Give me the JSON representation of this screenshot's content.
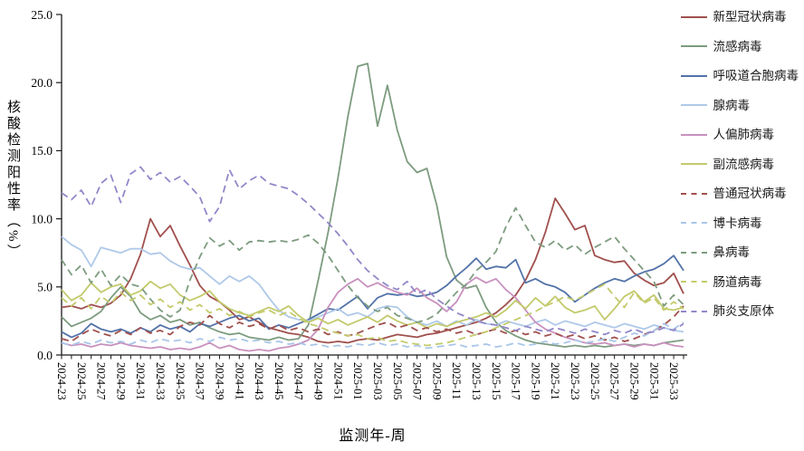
{
  "axes": {
    "x_title": "监测年-周",
    "y_title": "核酸检测阳性率（%）",
    "axis_color": "#1a1a1a"
  },
  "chart_data": {
    "type": "line",
    "title": "",
    "xlabel": "监测年-周",
    "ylabel": "核酸检测阳性率（%）",
    "ylim": [
      0,
      25
    ],
    "yticks": [
      "0.0",
      "5.0",
      "10.0",
      "15.0",
      "20.0",
      "25.0"
    ],
    "x_label_every": 2,
    "grid": false,
    "legend_position": "right",
    "categories": [
      "2024-23",
      "2024-24",
      "2024-25",
      "2024-26",
      "2024-27",
      "2024-28",
      "2024-29",
      "2024-30",
      "2024-31",
      "2024-32",
      "2024-33",
      "2024-34",
      "2024-35",
      "2024-36",
      "2024-37",
      "2024-38",
      "2024-39",
      "2024-40",
      "2024-41",
      "2024-42",
      "2024-43",
      "2024-44",
      "2024-45",
      "2024-46",
      "2024-47",
      "2024-48",
      "2024-49",
      "2024-50",
      "2024-51",
      "2024-52",
      "2025-01",
      "2025-02",
      "2025-03",
      "2025-04",
      "2025-05",
      "2025-06",
      "2025-07",
      "2025-08",
      "2025-09",
      "2025-10",
      "2025-11",
      "2025-12",
      "2025-13",
      "2025-14",
      "2025-15",
      "2025-16",
      "2025-17",
      "2025-18",
      "2025-19",
      "2025-20",
      "2025-21",
      "2025-22",
      "2025-23",
      "2025-24",
      "2025-25",
      "2025-26",
      "2025-27",
      "2025-28",
      "2025-29",
      "2025-30",
      "2025-31",
      "2025-32",
      "2025-33",
      "2025-34"
    ],
    "series": [
      {
        "id": "sars-cov-2",
        "name": "新型冠状病毒",
        "color": "#A0504E",
        "dash": false,
        "values": [
          3.5,
          3.6,
          3.4,
          3.7,
          3.5,
          3.8,
          4.4,
          5.6,
          7.4,
          10.0,
          8.7,
          9.5,
          8.0,
          6.6,
          5.1,
          4.3,
          3.9,
          3.3,
          2.6,
          2.8,
          2.4,
          2.0,
          1.8,
          1.6,
          1.5,
          1.3,
          1.0,
          0.9,
          1.0,
          0.9,
          1.1,
          1.2,
          1.1,
          1.3,
          1.5,
          1.4,
          1.3,
          1.5,
          1.6,
          1.8,
          2.0,
          2.2,
          2.4,
          2.7,
          3.1,
          3.7,
          4.4,
          5.5,
          7.0,
          9.0,
          11.5,
          10.4,
          9.2,
          9.5,
          7.3,
          7.0,
          6.8,
          6.9,
          6.0,
          5.5,
          5.1,
          5.3,
          6.0,
          4.5
        ]
      },
      {
        "id": "influenza",
        "name": "流感病毒",
        "color": "#7D9C7F",
        "dash": false,
        "values": [
          2.8,
          2.1,
          2.4,
          2.7,
          3.2,
          4.2,
          5.0,
          4.3,
          3.1,
          2.6,
          2.9,
          2.4,
          2.6,
          2.2,
          2.4,
          2.0,
          1.7,
          1.5,
          1.6,
          1.3,
          1.2,
          1.1,
          1.3,
          1.1,
          1.2,
          2.2,
          5.5,
          9.0,
          13.0,
          17.5,
          21.2,
          21.4,
          16.8,
          19.8,
          16.5,
          14.2,
          13.4,
          13.7,
          11.0,
          7.2,
          5.5,
          4.9,
          5.1,
          3.5,
          2.4,
          1.8,
          1.4,
          1.1,
          0.9,
          0.8,
          0.7,
          0.6,
          0.7,
          0.6,
          0.7,
          0.6,
          0.7,
          0.8,
          0.7,
          0.8,
          0.7,
          0.9,
          1.0,
          1.1
        ]
      },
      {
        "id": "rsv",
        "name": "呼吸道合胞病毒",
        "color": "#5373A8",
        "dash": false,
        "values": [
          1.7,
          1.3,
          1.6,
          2.3,
          1.9,
          1.7,
          1.9,
          1.6,
          2.0,
          1.7,
          2.2,
          1.9,
          2.1,
          1.7,
          2.3,
          2.1,
          2.4,
          2.7,
          2.9,
          2.5,
          2.7,
          1.9,
          2.2,
          2.0,
          2.3,
          2.6,
          3.0,
          3.4,
          3.3,
          3.8,
          4.3,
          3.4,
          4.2,
          4.5,
          4.4,
          4.5,
          4.3,
          4.4,
          4.6,
          5.1,
          5.8,
          6.4,
          7.1,
          6.3,
          6.5,
          6.4,
          7.0,
          5.3,
          5.6,
          5.2,
          5.0,
          4.6,
          3.9,
          4.4,
          4.9,
          5.3,
          5.6,
          5.4,
          5.8,
          6.1,
          6.3,
          6.7,
          7.3,
          6.2
        ]
      },
      {
        "id": "adenovirus",
        "name": "腺病毒",
        "color": "#AFC9E9",
        "dash": false,
        "values": [
          8.7,
          8.1,
          7.7,
          6.5,
          7.9,
          7.7,
          7.5,
          7.8,
          7.8,
          7.4,
          7.5,
          6.9,
          6.5,
          6.3,
          6.4,
          5.8,
          5.2,
          5.8,
          5.4,
          5.8,
          5.2,
          4.2,
          3.3,
          2.8,
          2.6,
          2.5,
          2.8,
          3.1,
          3.4,
          2.9,
          3.1,
          2.8,
          3.4,
          3.6,
          3.5,
          2.8,
          2.4,
          2.2,
          2.5,
          2.1,
          2.5,
          2.2,
          2.6,
          2.3,
          2.2,
          2.5,
          2.3,
          2.1,
          2.4,
          2.6,
          2.2,
          2.5,
          2.3,
          2.1,
          2.4,
          2.2,
          2.0,
          2.3,
          2.1,
          1.9,
          2.2,
          2.0,
          1.8,
          1.7
        ]
      },
      {
        "id": "hmpv",
        "name": "人偏肺病毒",
        "color": "#C891BE",
        "dash": false,
        "values": [
          0.9,
          0.7,
          0.8,
          0.6,
          0.8,
          0.7,
          0.9,
          0.7,
          0.6,
          0.5,
          0.6,
          0.4,
          0.5,
          0.4,
          0.6,
          0.9,
          0.5,
          0.7,
          0.4,
          0.3,
          0.4,
          0.3,
          0.5,
          0.6,
          0.8,
          1.1,
          1.9,
          3.5,
          4.6,
          5.2,
          5.6,
          5.0,
          5.3,
          4.9,
          4.6,
          4.4,
          4.9,
          4.2,
          3.8,
          3.2,
          3.9,
          5.2,
          5.7,
          5.3,
          5.6,
          4.8,
          4.2,
          3.3,
          2.4,
          1.9,
          1.6,
          1.3,
          1.1,
          0.9,
          0.8,
          0.9,
          0.7,
          0.8,
          0.6,
          0.8,
          0.7,
          0.9,
          0.7,
          0.6
        ]
      },
      {
        "id": "parainfluenza",
        "name": "副流感病毒",
        "color": "#C3CA6B",
        "dash": false,
        "values": [
          4.8,
          4.0,
          4.4,
          5.3,
          4.6,
          5.0,
          5.2,
          4.4,
          4.7,
          5.4,
          4.9,
          5.2,
          4.4,
          4.0,
          4.3,
          4.7,
          3.9,
          3.4,
          3.1,
          2.9,
          3.2,
          3.5,
          3.2,
          3.6,
          2.9,
          2.4,
          2.7,
          2.3,
          2.6,
          2.2,
          2.5,
          2.8,
          2.4,
          2.9,
          2.5,
          2.2,
          2.4,
          2.0,
          2.3,
          2.1,
          2.4,
          2.6,
          2.8,
          3.1,
          2.8,
          3.3,
          4.0,
          3.4,
          4.2,
          3.6,
          4.3,
          3.5,
          3.1,
          3.3,
          3.6,
          2.6,
          3.4,
          4.3,
          4.7,
          3.9,
          4.4,
          3.4,
          3.3,
          3.5
        ]
      },
      {
        "id": "common-hcov",
        "name": "普通冠状病毒",
        "color": "#A0504E",
        "dash": true,
        "values": [
          1.2,
          1.0,
          1.5,
          1.9,
          1.6,
          1.4,
          1.8,
          1.5,
          2.0,
          1.6,
          1.8,
          1.5,
          2.1,
          2.4,
          2.2,
          2.9,
          2.3,
          2.0,
          2.4,
          2.1,
          2.3,
          1.9,
          2.2,
          1.8,
          2.0,
          1.7,
          1.9,
          1.5,
          1.7,
          1.4,
          1.6,
          1.9,
          2.2,
          2.4,
          2.0,
          2.2,
          1.8,
          2.0,
          1.7,
          1.9,
          1.6,
          1.8,
          1.5,
          1.7,
          1.9,
          1.6,
          1.8,
          1.5,
          1.7,
          1.4,
          1.6,
          1.3,
          1.5,
          1.2,
          1.4,
          1.1,
          1.3,
          1.0,
          1.2,
          1.5,
          1.8,
          2.2,
          2.8,
          3.6
        ]
      },
      {
        "id": "bocavirus",
        "name": "博卡病毒",
        "color": "#A9C6E8",
        "dash": true,
        "values": [
          0.9,
          0.7,
          1.0,
          0.8,
          1.1,
          0.9,
          1.0,
          0.8,
          1.1,
          0.9,
          1.2,
          1.0,
          1.1,
          0.9,
          1.2,
          1.0,
          1.3,
          1.1,
          1.2,
          1.0,
          1.1,
          0.9,
          1.0,
          0.8,
          0.9,
          0.7,
          0.8,
          0.6,
          0.7,
          0.6,
          0.8,
          0.7,
          0.9,
          0.7,
          0.8,
          0.6,
          0.7,
          0.5,
          0.6,
          0.7,
          0.8,
          0.6,
          0.7,
          0.8,
          0.6,
          0.7,
          0.9,
          0.7,
          0.8,
          1.0,
          0.8,
          0.9,
          1.1,
          0.9,
          1.0,
          1.2,
          1.0,
          1.3,
          1.6,
          1.4,
          1.8,
          2.3,
          1.9,
          2.4
        ]
      },
      {
        "id": "rhinovirus",
        "name": "鼻病毒",
        "color": "#7D9C7F",
        "dash": true,
        "values": [
          7.0,
          5.9,
          6.6,
          5.3,
          6.3,
          5.1,
          5.9,
          5.2,
          5.0,
          4.1,
          3.3,
          2.8,
          3.3,
          5.5,
          7.2,
          8.6,
          8.0,
          8.4,
          7.7,
          8.3,
          8.4,
          8.3,
          8.4,
          8.3,
          8.5,
          8.8,
          8.2,
          7.3,
          6.2,
          5.1,
          4.2,
          3.6,
          3.2,
          3.5,
          2.9,
          2.7,
          2.4,
          2.6,
          3.0,
          3.8,
          4.6,
          5.2,
          6.2,
          6.8,
          7.6,
          9.4,
          10.8,
          9.5,
          8.3,
          7.9,
          8.4,
          7.7,
          8.1,
          7.4,
          7.9,
          8.3,
          8.7,
          7.8,
          7.0,
          6.2,
          5.4,
          3.6,
          4.4,
          3.7
        ]
      },
      {
        "id": "enterovirus",
        "name": "肠道病毒",
        "color": "#C3CA6B",
        "dash": true,
        "values": [
          4.2,
          3.6,
          4.2,
          3.4,
          4.3,
          3.8,
          4.6,
          4.0,
          4.4,
          3.7,
          4.1,
          3.5,
          3.9,
          3.3,
          3.7,
          3.1,
          3.4,
          2.9,
          3.2,
          2.8,
          3.1,
          3.3,
          2.9,
          3.2,
          2.7,
          2.3,
          2.1,
          1.8,
          1.6,
          1.4,
          1.5,
          1.2,
          1.3,
          1.0,
          1.1,
          0.9,
          0.8,
          0.7,
          0.8,
          0.9,
          1.1,
          1.3,
          1.5,
          1.7,
          2.0,
          2.3,
          2.6,
          2.9,
          3.2,
          3.6,
          3.9,
          4.3,
          4.0,
          4.4,
          4.8,
          5.2,
          4.3,
          3.5,
          4.6,
          3.8,
          4.2,
          3.3,
          3.9,
          3.4
        ]
      },
      {
        "id": "mycoplasma",
        "name": "肺炎支原体",
        "color": "#9287C9",
        "dash": true,
        "values": [
          11.9,
          11.4,
          12.1,
          10.9,
          12.6,
          13.2,
          11.2,
          13.3,
          13.8,
          12.9,
          13.4,
          12.7,
          13.1,
          12.4,
          11.6,
          9.8,
          10.9,
          13.6,
          12.2,
          12.8,
          13.2,
          12.6,
          12.4,
          12.2,
          11.7,
          11.1,
          10.4,
          9.7,
          8.9,
          8.0,
          7.0,
          6.2,
          5.6,
          5.1,
          4.8,
          5.4,
          4.5,
          4.8,
          4.1,
          3.6,
          3.1,
          2.8,
          2.5,
          2.3,
          2.2,
          2.0,
          1.8,
          2.1,
          1.9,
          1.7,
          2.0,
          1.8,
          1.6,
          1.9,
          1.7,
          1.5,
          1.8,
          1.6,
          1.9,
          1.6,
          1.7,
          2.0,
          1.8,
          2.3
        ]
      }
    ]
  }
}
